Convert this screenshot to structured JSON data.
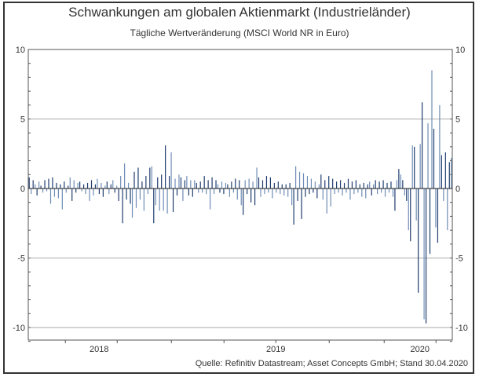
{
  "chart_data": {
    "type": "bar",
    "title": "Schwankungen am globalen Aktienmarkt (Industrieländer)",
    "subtitle": "Tägliche Wertveränderung (MSCI World NR in Euro)",
    "ylabel": "",
    "xlabel": "",
    "ylim": [
      -11,
      10
    ],
    "yticks": [
      10,
      5,
      0,
      -5,
      -10
    ],
    "ytick_labels": [
      "10",
      "5",
      "0",
      "-5",
      "-10"
    ],
    "grid": "horizontal at ±5 and ±10",
    "x_labels": [
      {
        "label": "2018",
        "index": 35.6
      },
      {
        "label": "2019",
        "index": 125.6
      },
      {
        "label": "2020",
        "index": 199
      }
    ],
    "x_tick_index": [
      18.4,
      44.8,
      72.4,
      99.2,
      125.6,
      152.8,
      180.8,
      207.2
    ],
    "n_points": 216,
    "colors": {
      "dark": "#1f3d6e",
      "light": "#6f8db5"
    },
    "values": [
      0.8,
      -0.4,
      0.6,
      0.3,
      -0.5,
      0.5,
      0.2,
      -0.3,
      0.6,
      -0.2,
      0.7,
      -1.1,
      0.8,
      -0.6,
      0.4,
      -0.7,
      0.3,
      -1.5,
      0.5,
      -0.3,
      0.2,
      0.8,
      -0.9,
      0.6,
      -0.3,
      0.4,
      0.5,
      -0.2,
      0.3,
      -0.4,
      0.4,
      -0.9,
      0.6,
      -0.5,
      0.3,
      0.7,
      -0.4,
      0.4,
      -0.6,
      0.2,
      0.5,
      -0.4,
      0.3,
      0.6,
      -0.3,
      0.2,
      -0.9,
      0.9,
      -2.5,
      1.8,
      -0.8,
      0.4,
      -1.1,
      -2.1,
      1.2,
      -1.4,
      1.5,
      -0.8,
      0.5,
      -1.6,
      0.9,
      -0.4,
      1.5,
      1.6,
      -2.5,
      -1.2,
      0.8,
      -1.6,
      1.0,
      -1.6,
      3.1,
      -1.8,
      0.9,
      2.6,
      -1.7,
      0.7,
      -0.5,
      1.0,
      0.8,
      -0.9,
      0.6,
      0.9,
      -0.5,
      0.6,
      -0.6,
      0.6,
      0.4,
      -0.3,
      0.5,
      -0.3,
      0.9,
      -0.4,
      0.6,
      -1.5,
      0.8,
      -0.4,
      0.6,
      0.3,
      -0.3,
      0.5,
      -0.4,
      0.4,
      0.3,
      -0.6,
      0.5,
      -0.3,
      0.7,
      -0.8,
      0.6,
      -1.2,
      -1.9,
      0.6,
      -0.4,
      0.7,
      -1.0,
      0.5,
      -1.2,
      1.5,
      0.8,
      -0.6,
      0.6,
      -0.4,
      0.9,
      -0.3,
      0.8,
      -0.7,
      0.4,
      -0.3,
      0.5,
      -0.4,
      0.3,
      -0.5,
      0.3,
      -0.6,
      0.4,
      -1.2,
      -2.6,
      1.6,
      -0.9,
      1.2,
      -2.2,
      1.1,
      -0.6,
      0.9,
      -0.4,
      0.7,
      -0.3,
      0.5,
      -0.7,
      0.3,
      1.0,
      -0.8,
      0.6,
      -1.8,
      0.9,
      -1.3,
      0.7,
      -0.4,
      0.5,
      -0.3,
      0.6,
      -0.5,
      0.4,
      -0.3,
      0.7,
      -0.8,
      0.5,
      -0.4,
      0.6,
      -0.3,
      0.3,
      -0.6,
      0.4,
      -0.7,
      0.3,
      0.5,
      -0.5,
      0.3,
      0.6,
      -0.4,
      0.5,
      -0.3,
      0.6,
      -0.6,
      0.4,
      -0.3,
      0.5,
      -0.6,
      -1.6,
      0.6,
      1.4,
      1.0,
      0.6,
      -0.5,
      -0.9,
      -3.0,
      -3.8,
      3.1,
      3.0,
      -2.3,
      -7.5,
      3.2,
      6.2,
      -9.4,
      -9.7,
      4.7,
      -4.7,
      8.5,
      4.3,
      -2.8,
      -3.9,
      6.0,
      2.4,
      -0.9,
      2.6,
      -3.0
    ],
    "tail_values": [
      1.9,
      2.2
    ],
    "source": "Quelle: Refinitiv Datastream; Asset Concepts GmbH; Stand 30.04.2020"
  }
}
